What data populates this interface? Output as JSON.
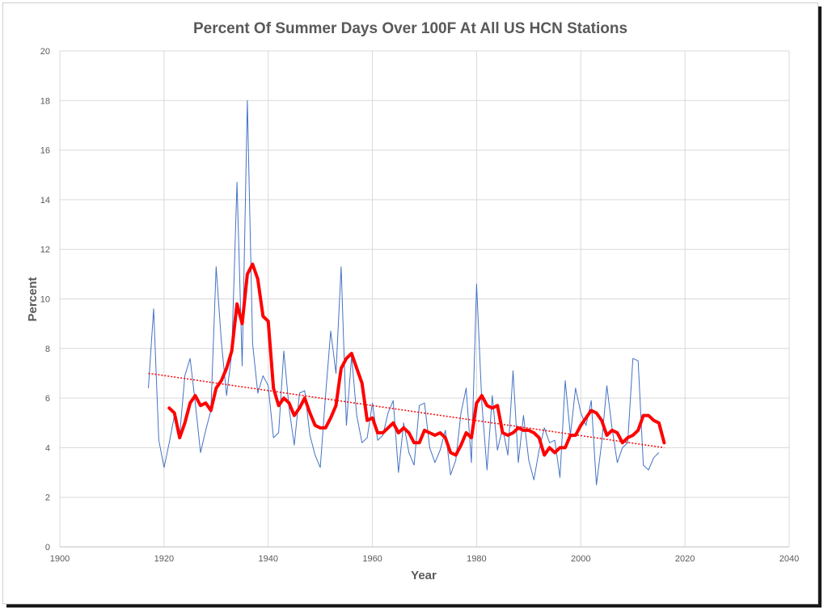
{
  "chart_data": {
    "type": "line",
    "title": "Percent Of Summer Days Over 100F At All US HCN Stations",
    "xlabel": "Year",
    "ylabel": "Percent",
    "xlim": [
      1900,
      2040
    ],
    "ylim": [
      0,
      20
    ],
    "x_ticks": [
      1900,
      1920,
      1940,
      1960,
      1980,
      2000,
      2020,
      2040
    ],
    "y_ticks": [
      0,
      2,
      4,
      6,
      8,
      10,
      12,
      14,
      16,
      18,
      20
    ],
    "grid": true,
    "legend": "none",
    "colors": {
      "annual": "#4472c4",
      "moving_average": "#ff0000",
      "trend": "#ff0000",
      "grid": "#d9d9d9",
      "title": "#595959"
    },
    "series": [
      {
        "style": "thin-line",
        "x_start": 1917,
        "values": [
          6.4,
          9.6,
          4.3,
          3.2,
          4.2,
          5.3,
          4.5,
          6.9,
          7.6,
          5.8,
          3.8,
          4.7,
          5.5,
          11.3,
          8.3,
          6.1,
          7.8,
          14.7,
          7.3,
          18.0,
          8.2,
          6.2,
          6.9,
          6.5,
          4.4,
          4.6,
          7.9,
          5.6,
          4.1,
          6.2,
          6.3,
          4.5,
          3.7,
          3.2,
          6.1,
          8.7,
          7.0,
          11.3,
          4.9,
          7.7,
          5.3,
          4.2,
          4.4,
          5.8,
          4.3,
          4.5,
          5.4,
          5.9,
          3.0,
          5.0,
          3.8,
          3.3,
          5.7,
          5.8,
          4.0,
          3.4,
          3.9,
          4.7,
          2.9,
          3.5,
          5.4,
          6.4,
          3.4,
          10.6,
          5.8,
          3.1,
          6.1,
          3.9,
          4.8,
          3.7,
          7.1,
          3.4,
          5.3,
          3.5,
          2.7,
          3.9,
          4.8,
          4.2,
          4.3,
          2.8,
          6.7,
          4.5,
          6.4,
          5.4,
          4.9,
          5.9,
          2.5,
          4.2,
          6.5,
          4.8,
          3.4,
          4.0,
          4.2,
          7.6,
          7.5,
          3.3,
          3.1,
          3.6,
          3.8
        ]
      },
      {
        "style": "thick-line",
        "x_start": 1921,
        "values": [
          5.6,
          5.4,
          4.4,
          5.0,
          5.8,
          6.1,
          5.7,
          5.8,
          5.5,
          6.4,
          6.7,
          7.2,
          7.9,
          9.8,
          9.0,
          11.0,
          11.4,
          10.8,
          9.3,
          9.1,
          6.4,
          5.7,
          6.0,
          5.8,
          5.3,
          5.6,
          6.0,
          5.4,
          4.9,
          4.8,
          4.8,
          5.2,
          5.7,
          7.2,
          7.6,
          7.8,
          7.2,
          6.6,
          5.1,
          5.2,
          4.6,
          4.6,
          4.8,
          5.0,
          4.6,
          4.8,
          4.6,
          4.2,
          4.2,
          4.7,
          4.6,
          4.5,
          4.6,
          4.4,
          3.8,
          3.7,
          4.1,
          4.6,
          4.4,
          5.8,
          6.1,
          5.7,
          5.6,
          5.7,
          4.6,
          4.5,
          4.6,
          4.8,
          4.7,
          4.7,
          4.6,
          4.4,
          3.7,
          4.0,
          3.8,
          4.0,
          4.0,
          4.5,
          4.5,
          4.9,
          5.2,
          5.5,
          5.4,
          5.1,
          4.5,
          4.7,
          4.6,
          4.2,
          4.4,
          4.5,
          4.7,
          5.3,
          5.3,
          5.1,
          5.0,
          4.2
        ]
      },
      {
        "style": "dotted-trend",
        "x": [
          1917,
          2016
        ],
        "values": [
          7.0,
          4.0
        ]
      }
    ]
  }
}
